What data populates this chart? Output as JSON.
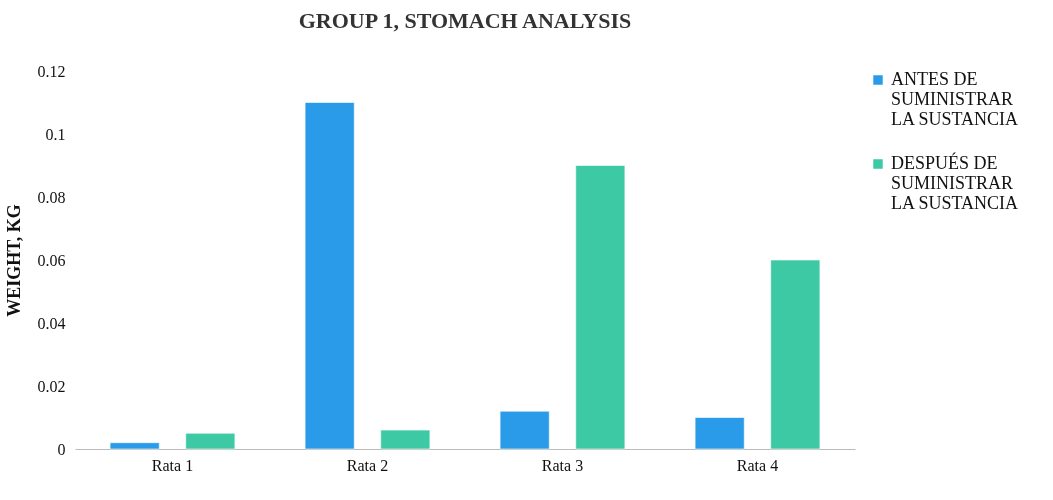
{
  "chart_data": {
    "type": "bar",
    "title": "GROUP 1, STOMACH ANALYSIS",
    "ylabel": "WEIGHT, KG",
    "categories": [
      "Rata 1",
      "Rata 2",
      "Rata 3",
      "Rata 4"
    ],
    "series": [
      {
        "name": "ANTES DE SUMINISTRAR LA SUSTANCIA",
        "color": "#2a9be8",
        "values": [
          0.002,
          0.11,
          0.012,
          0.01
        ]
      },
      {
        "name": "DESPUÉS DE SUMINISTRAR LA SUSTANCIA",
        "color": "#3cc9a4",
        "values": [
          0.005,
          0.006,
          0.09,
          0.06
        ]
      }
    ],
    "ylim": [
      0,
      0.12
    ],
    "yticks": [
      0,
      0.02,
      0.04,
      0.06,
      0.08,
      0.1,
      0.12
    ],
    "grid": false,
    "legend": "right"
  }
}
